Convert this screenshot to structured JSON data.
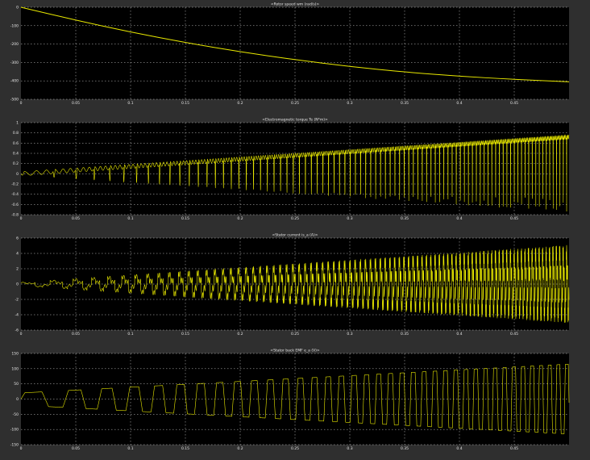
{
  "colors": {
    "trace": "#e8e800",
    "grid": "#cfcfcf",
    "plot_bg": "#000000",
    "frame_bg": "#2f2f2f",
    "text": "#e6e6e6"
  },
  "chart_data": [
    {
      "type": "line",
      "title": "<Rotor speed wm (rad/s)>",
      "xlim": [
        0,
        0.5
      ],
      "ylim": [
        -500,
        0
      ],
      "xticks": [
        "0",
        "0.05",
        "0.1",
        "0.15",
        "0.2",
        "0.25",
        "0.3",
        "0.35",
        "0.4",
        "0.45"
      ],
      "yticks": [
        "0",
        "-100",
        "-200",
        "-300",
        "-400",
        "-500"
      ],
      "ytick_values": [
        0,
        -100,
        -200,
        -300,
        -400,
        -500
      ],
      "grid": true,
      "series": [
        {
          "x": [
            0,
            0.05,
            0.1,
            0.15,
            0.2,
            0.25,
            0.3,
            0.35,
            0.4,
            0.45,
            0.5
          ],
          "y": [
            0,
            -70,
            -135,
            -192,
            -242,
            -285,
            -322,
            -352,
            -375,
            -392,
            -405
          ]
        }
      ]
    },
    {
      "type": "line",
      "title": "<Electromagnetic torque Te (N*m)>",
      "xlim": [
        0,
        0.5
      ],
      "ylim": [
        -0.8,
        1.0
      ],
      "xticks": [
        "0",
        "0.05",
        "0.1",
        "0.15",
        "0.2",
        "0.25",
        "0.3",
        "0.35",
        "0.4",
        "0.45"
      ],
      "yticks": [
        "1",
        "0.8",
        "0.6",
        "0.4",
        "0.2",
        "0",
        "-0.2",
        "-0.4",
        "-0.6",
        "-0.8"
      ],
      "ytick_values": [
        1,
        0.8,
        0.6,
        0.4,
        0.2,
        0,
        -0.2,
        -0.4,
        -0.6,
        -0.8
      ],
      "grid": true,
      "waveform": {
        "shape": "torque",
        "freq_start": 25,
        "freq_end": 330,
        "base_start": 0.0,
        "base_end": 0.72,
        "low_start": -0.05,
        "low_end": -0.78
      }
    },
    {
      "type": "line",
      "title": "<Stator current is_a (A)>",
      "xlim": [
        0,
        0.5
      ],
      "ylim": [
        -6,
        6
      ],
      "xticks": [
        "0",
        "0.05",
        "0.1",
        "0.15",
        "0.2",
        "0.25",
        "0.3",
        "0.35",
        "0.4",
        "0.45"
      ],
      "yticks": [
        "6",
        "4",
        "2",
        "0",
        "-2",
        "-4",
        "-6"
      ],
      "ytick_values": [
        6,
        4,
        2,
        0,
        -2,
        -4,
        -6
      ],
      "grid": true,
      "waveform": {
        "shape": "current",
        "freq_start": 25,
        "freq_end": 330,
        "amp_start": 0.2,
        "amp_end": 4.8
      }
    },
    {
      "type": "line",
      "title": "<Stator back EMF e_a (V)>",
      "xlim": [
        0,
        0.5
      ],
      "ylim": [
        -150,
        150
      ],
      "xticks": [
        "0",
        "0.05",
        "0.1",
        "0.15",
        "0.2",
        "0.25",
        "0.3",
        "0.35",
        "0.4",
        "0.45"
      ],
      "yticks": [
        "150",
        "100",
        "50",
        "0",
        "-50",
        "-100",
        "-150"
      ],
      "ytick_values": [
        150,
        100,
        50,
        0,
        -50,
        -100,
        -150
      ],
      "grid": true,
      "waveform": {
        "shape": "trapezoid",
        "freq_start": 20,
        "freq_end": 130,
        "amp_start": 20,
        "amp_end": 115
      }
    }
  ]
}
